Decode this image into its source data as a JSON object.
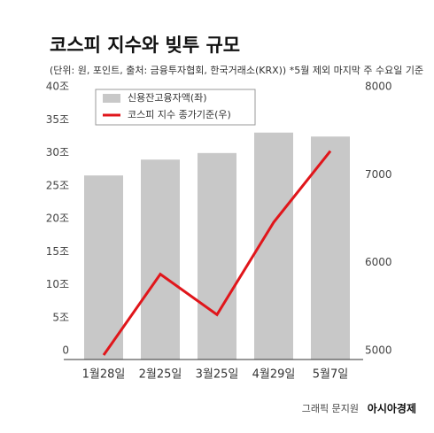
{
  "chart_data": {
    "type": "bar-line",
    "title": "코스피 지수와 빚투 규모",
    "subtitle": "(단위: 원, 포인트, 출처: 금융투자협회, 한국거래소(KRX))  *5월 제외 마지막 주 수요일 기준",
    "categories": [
      "1월28일",
      "2월25일",
      "3월25일",
      "4월29일",
      "5월7일"
    ],
    "series": [
      {
        "name": "신용잔고융자액(좌)",
        "color": "#c8c8c8",
        "type": "bar",
        "values": [
          27.9,
          30.3,
          31.3,
          34.4,
          33.8
        ]
      },
      {
        "name": "코스피 지수 종가기준(우)",
        "color": "#e0161b",
        "type": "line",
        "axis": "y2",
        "values": [
          5050,
          5970,
          5510,
          6560,
          7370
        ]
      }
    ],
    "ylim": [
      0,
      40
    ],
    "yticks": [
      0,
      {
        "value": 5,
        "label": "5조"
      },
      {
        "value": 10,
        "label": "10조"
      },
      {
        "value": 15,
        "label": "15조"
      },
      {
        "value": 20,
        "label": "20조"
      },
      {
        "value": 25,
        "label": "25조"
      },
      {
        "value": 30,
        "label": "30조"
      },
      {
        "value": 35,
        "label": "35조"
      },
      {
        "value": 40,
        "label": "40조"
      }
    ],
    "y2lim": [
      5000,
      8000
    ],
    "y2ticks": [
      5000,
      6000,
      7000,
      8000
    ],
    "credit": "그래픽 문지원",
    "source_brand": "아시아경제"
  }
}
